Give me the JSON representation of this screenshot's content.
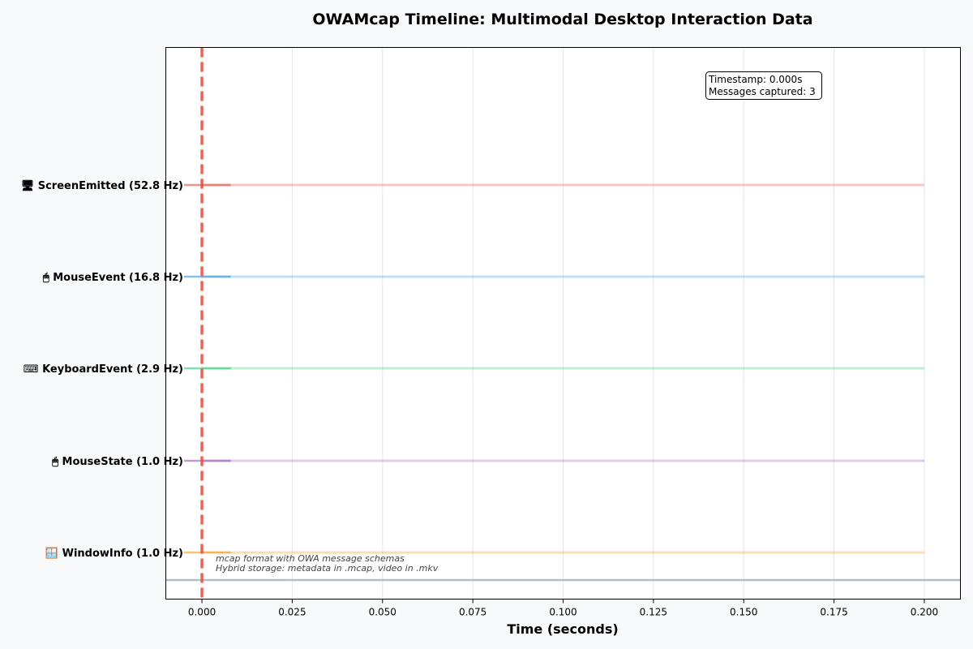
{
  "chart_data": {
    "type": "line",
    "title": "OWAMcap Timeline: Multimodal Desktop Interaction Data",
    "xlabel": "Time (seconds)",
    "xlim": [
      -0.01,
      0.21
    ],
    "xticks": [
      "0.000",
      "0.025",
      "0.050",
      "0.075",
      "0.100",
      "0.125",
      "0.150",
      "0.175",
      "0.200"
    ],
    "xtick_values": [
      0.0,
      0.025,
      0.05,
      0.075,
      0.1,
      0.125,
      0.15,
      0.175,
      0.2
    ],
    "grid": true,
    "current_time": 0.0,
    "series": [
      {
        "label": "🖥 ScreenEmitted (52.8 Hz)",
        "color": "#e74c3c",
        "start": 0.0,
        "end": 0.2
      },
      {
        "label": "🖱 MouseEvent (16.8 Hz)",
        "color": "#3498db",
        "start": 0.0,
        "end": 0.2
      },
      {
        "label": "⌨ KeyboardEvent (2.9 Hz)",
        "color": "#2ecc71",
        "start": 0.0,
        "end": 0.2
      },
      {
        "label": "🖱 MouseState (1.0 Hz)",
        "color": "#9b59b6",
        "start": 0.0,
        "end": 0.2
      },
      {
        "label": "🪟 WindowInfo (1.0 Hz)",
        "color": "#f39c12",
        "start": 0.0,
        "end": 0.2
      }
    ],
    "info_box": {
      "line1": "Timestamp: 0.000s",
      "line2": "Messages captured: 3"
    },
    "footnote": {
      "line1": "mcap format with OWA message schemas",
      "line2": "Hybrid storage: metadata in .mcap, video in .mkv"
    }
  }
}
